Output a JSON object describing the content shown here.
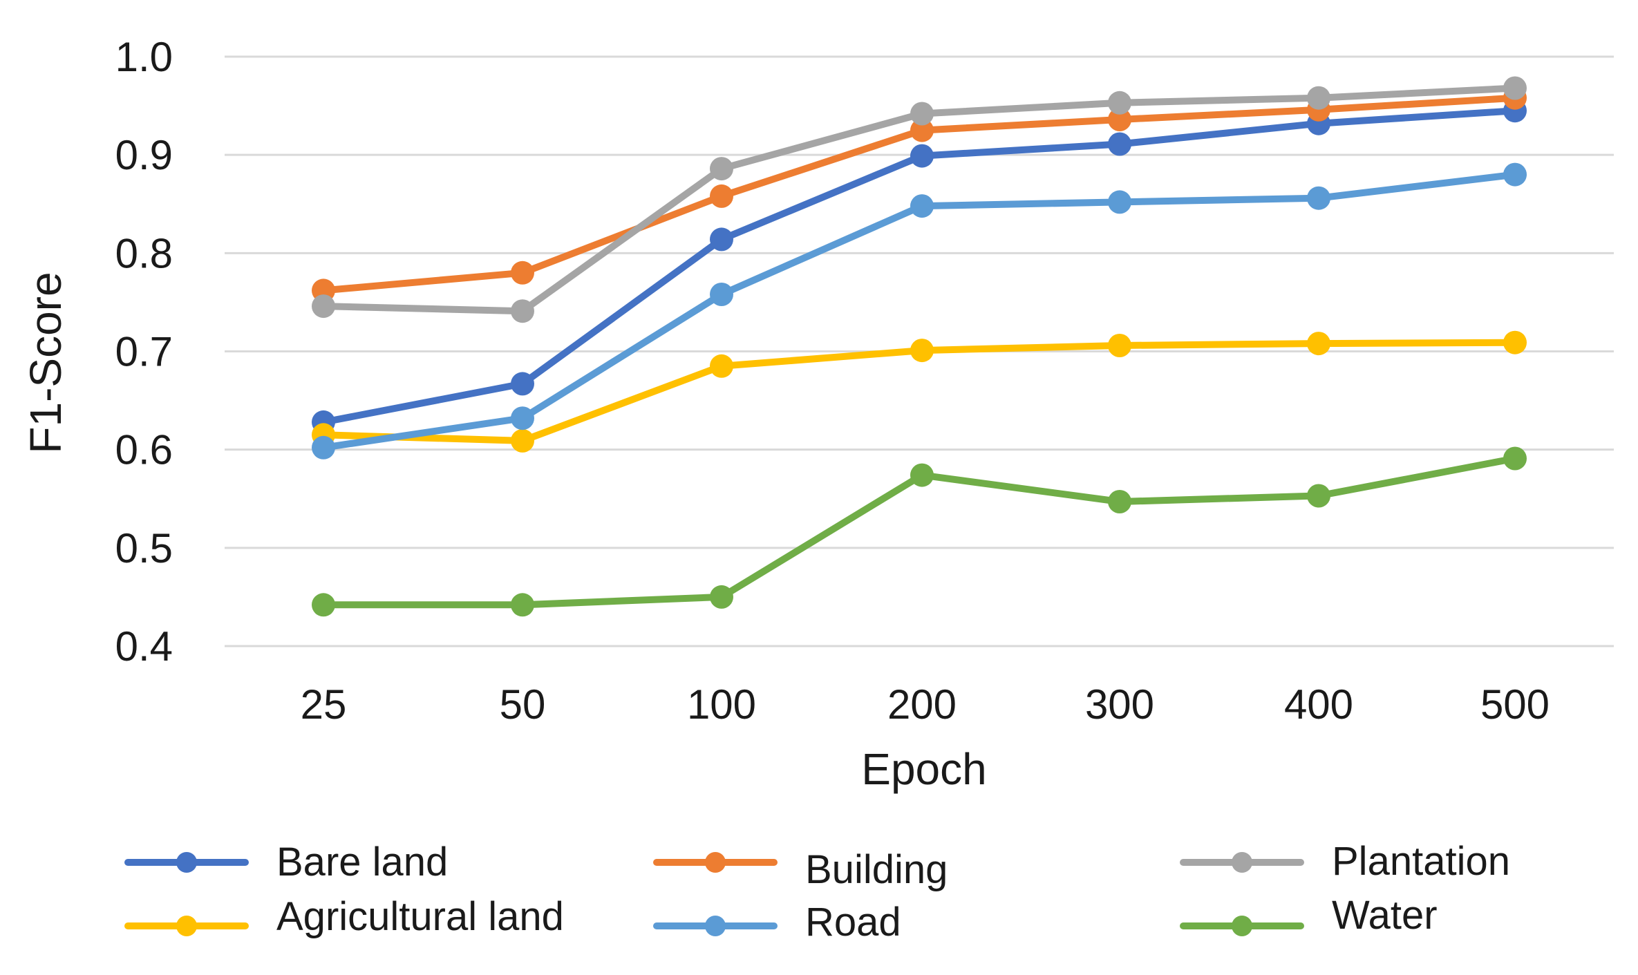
{
  "chart_data": {
    "type": "line",
    "title": "",
    "xlabel": "Epoch",
    "ylabel": "F1-Score",
    "categories": [
      "25",
      "50",
      "100",
      "200",
      "300",
      "400",
      "500"
    ],
    "ylim": [
      0.4,
      1.0
    ],
    "yticks": [
      0.4,
      0.5,
      0.6,
      0.7,
      0.8,
      0.9,
      1.0
    ],
    "ytick_labels": [
      "0.4",
      "0.5",
      "0.6",
      "0.7",
      "0.8",
      "0.9",
      "1.0"
    ],
    "grid": true,
    "legend_position": "bottom",
    "series": [
      {
        "name": "Bare land",
        "color": "#4472C4",
        "values": [
          0.628,
          0.667,
          0.814,
          0.899,
          0.911,
          0.932,
          0.945
        ]
      },
      {
        "name": "Building",
        "color": "#ED7D31",
        "values": [
          0.762,
          0.78,
          0.858,
          0.925,
          0.936,
          0.946,
          0.958
        ]
      },
      {
        "name": "Plantation",
        "color": "#A5A5A5",
        "values": [
          0.746,
          0.741,
          0.886,
          0.942,
          0.953,
          0.958,
          0.968
        ]
      },
      {
        "name": "Agricultural land",
        "color": "#FFC000",
        "values": [
          0.615,
          0.609,
          0.685,
          0.701,
          0.706,
          0.708,
          0.709
        ]
      },
      {
        "name": "Road",
        "color": "#5B9BD5",
        "values": [
          0.602,
          0.632,
          0.758,
          0.848,
          0.852,
          0.856,
          0.88
        ]
      },
      {
        "name": "Water",
        "color": "#70AD47",
        "values": [
          0.442,
          0.442,
          0.45,
          0.574,
          0.547,
          0.553,
          0.591
        ]
      }
    ]
  }
}
